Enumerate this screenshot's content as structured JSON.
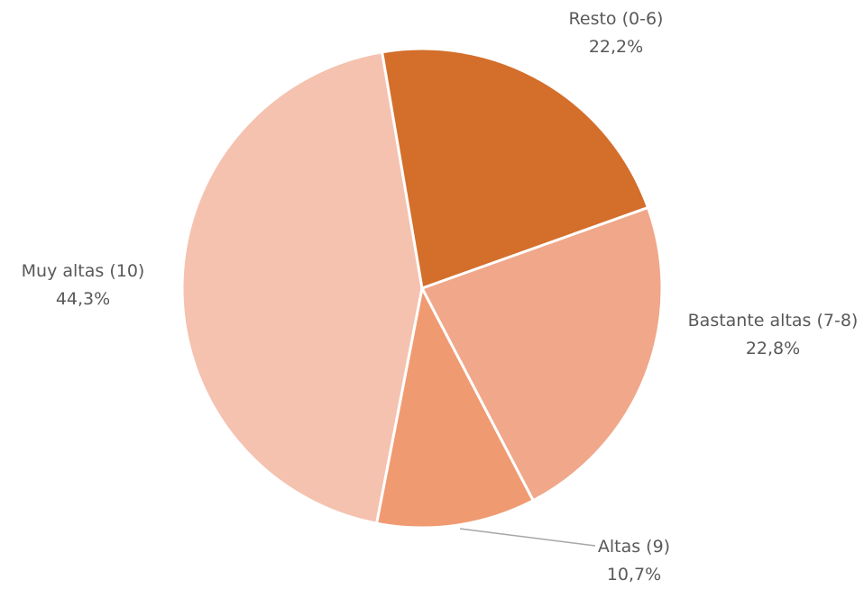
{
  "chart_data": {
    "type": "pie",
    "categories": [
      "Resto (0-6)",
      "Bastante altas (7-8)",
      "Altas (9)",
      "Muy altas (10)"
    ],
    "values": [
      22.2,
      22.8,
      10.7,
      44.3
    ],
    "value_labels": [
      "22,2%",
      "22,8%",
      "10,7%",
      "44,3%"
    ],
    "colors": [
      "#d36e2b",
      "#f0a78a",
      "#f09a72",
      "#f5c2b0"
    ]
  }
}
